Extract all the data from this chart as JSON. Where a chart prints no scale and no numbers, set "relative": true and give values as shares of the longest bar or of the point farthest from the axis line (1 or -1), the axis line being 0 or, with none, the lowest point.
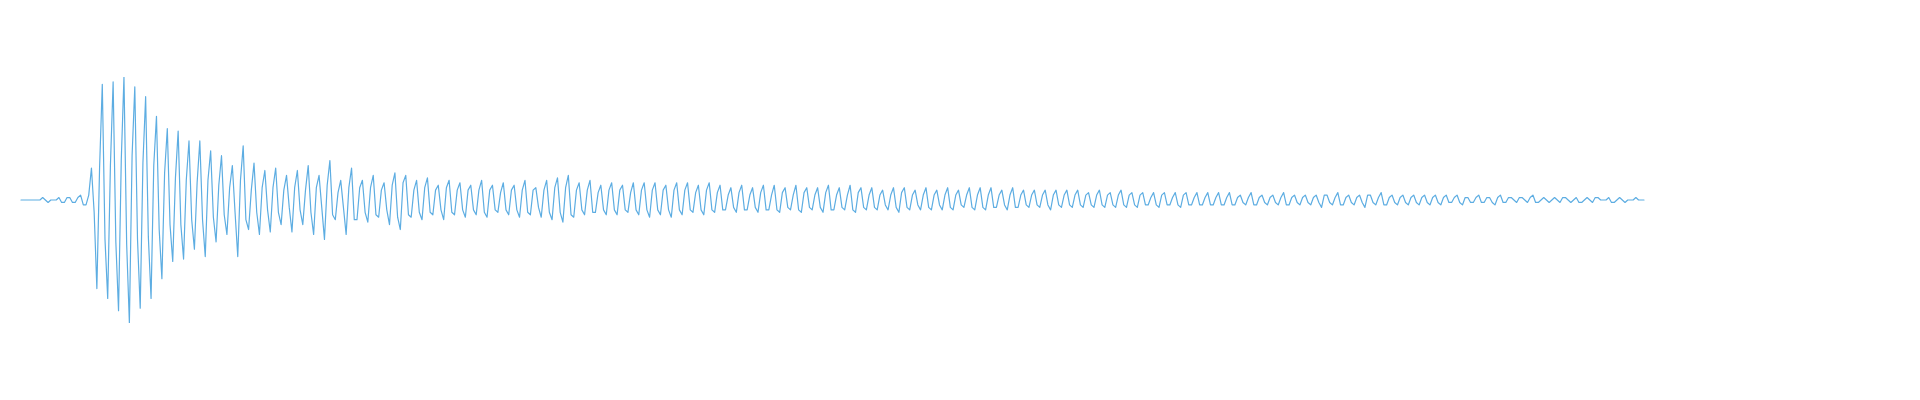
{
  "chart_data": {
    "type": "line",
    "relative": true,
    "color": "#5dade2",
    "categories": [
      null,
      null,
      null,
      null,
      null,
      null,
      null,
      null,
      null,
      null,
      null,
      null,
      null,
      null,
      null,
      null,
      null,
      null,
      null,
      null,
      null,
      null,
      null,
      null,
      null,
      null,
      null,
      null,
      null,
      null,
      null,
      null,
      null,
      null,
      null,
      null,
      null,
      null,
      null,
      null,
      null,
      null,
      null,
      null,
      null,
      null,
      null,
      null,
      null,
      null,
      null,
      null,
      null,
      null,
      null,
      null,
      null,
      null,
      null,
      null,
      null,
      null,
      null,
      null,
      null,
      null,
      null,
      null,
      null,
      null,
      null,
      null,
      null,
      null,
      null,
      null,
      null,
      null,
      null,
      null,
      null,
      null,
      null,
      null,
      null,
      null,
      null,
      null,
      null,
      null,
      null,
      null,
      null,
      null,
      null,
      null,
      null,
      null,
      null,
      null,
      null,
      null,
      null,
      null,
      null,
      null,
      null,
      null,
      null,
      null,
      null,
      null,
      null,
      null,
      null,
      null,
      null,
      null,
      null,
      null,
      null,
      null,
      null,
      null,
      null,
      null,
      null,
      null,
      null,
      null,
      null,
      null,
      null,
      null,
      null,
      null,
      null,
      null,
      null,
      null,
      null,
      null,
      null,
      null,
      null,
      null,
      null,
      null,
      null,
      null,
      null,
      null,
      null,
      null,
      null,
      null,
      null,
      null,
      null,
      null,
      null,
      null,
      null,
      null,
      null,
      null,
      null,
      null,
      null,
      null,
      null,
      null,
      null,
      null,
      null,
      null,
      null,
      null,
      null,
      null,
      null,
      null,
      null,
      null,
      null,
      null,
      null,
      null,
      null,
      null,
      null,
      null,
      null,
      null,
      null,
      null,
      null,
      null,
      null,
      null,
      null,
      null,
      null,
      null,
      null,
      null,
      null,
      null,
      null,
      null,
      null,
      null,
      null,
      null,
      null,
      null,
      null,
      null,
      null,
      null,
      null,
      null,
      null,
      null,
      null,
      null,
      null,
      null,
      null,
      null,
      null,
      null,
      null,
      null,
      null,
      null,
      null,
      null,
      null,
      null,
      null,
      null,
      null,
      null,
      null,
      null,
      null,
      null,
      null,
      null,
      null,
      null,
      null,
      null,
      null,
      null,
      null,
      null,
      null,
      null,
      null,
      null,
      null,
      null,
      null,
      null,
      null,
      null,
      null,
      null,
      null,
      null,
      null,
      null,
      null,
      null,
      null,
      null,
      null,
      null,
      null,
      null,
      null,
      null,
      null,
      null,
      null,
      null,
      null,
      null,
      null,
      null,
      null,
      null,
      null,
      null,
      null,
      null,
      null,
      null,
      null,
      null,
      null,
      null,
      null,
      null,
      null,
      null,
      null,
      null,
      null,
      null,
      null,
      null,
      null,
      null,
      null,
      null,
      null,
      null,
      null,
      null,
      null,
      null,
      null,
      null,
      null,
      null,
      null,
      null,
      null,
      null,
      null,
      null,
      null,
      null,
      null,
      null,
      null,
      null,
      null,
      null,
      null,
      null,
      null,
      null,
      null,
      null,
      null,
      null,
      null,
      null,
      null,
      null,
      null,
      null,
      null,
      null,
      null,
      null,
      null,
      null,
      null,
      null,
      null,
      null,
      null,
      null,
      null,
      null,
      null,
      null,
      null,
      null,
      null,
      null,
      null,
      null,
      null,
      null,
      null,
      null,
      null,
      null,
      null,
      null,
      null,
      null,
      null,
      null,
      null,
      null,
      null,
      null,
      null,
      null,
      null,
      null,
      null,
      null,
      null,
      null,
      null,
      null,
      null,
      null,
      null,
      null,
      null,
      null,
      null,
      null,
      null,
      null,
      null,
      null,
      null,
      null,
      null,
      null,
      null,
      null,
      null,
      null,
      null,
      null,
      null,
      null,
      null,
      null,
      null,
      null,
      null,
      null,
      null,
      null,
      null,
      null,
      null,
      null,
      null,
      null,
      null,
      null,
      null,
      null,
      null,
      null,
      null,
      null,
      null,
      null,
      null,
      null,
      null,
      null,
      null,
      null,
      null,
      null,
      null,
      null,
      null,
      null,
      null,
      null,
      null,
      null,
      null,
      null,
      null,
      null,
      null,
      null,
      null,
      null,
      null,
      null,
      null,
      null,
      null,
      null,
      null,
      null,
      null,
      null,
      null,
      null,
      null,
      null,
      null,
      null,
      null,
      null,
      null,
      null,
      null,
      null,
      null,
      null,
      null,
      null,
      null,
      null,
      null,
      null,
      null,
      null,
      null,
      null,
      null,
      null,
      null,
      null,
      null,
      null,
      null,
      null,
      null,
      null,
      null,
      null,
      null,
      null,
      null,
      null,
      null,
      null,
      null,
      null,
      null,
      null,
      null,
      null,
      null,
      null,
      null,
      null,
      null,
      null,
      null,
      null,
      null,
      null,
      null,
      null,
      null,
      null,
      null,
      null,
      null,
      null,
      null,
      null,
      null,
      null,
      null,
      null,
      null,
      null,
      null,
      null,
      null,
      null,
      null,
      null,
      null,
      null,
      null,
      null,
      null,
      null,
      null,
      null,
      null,
      null,
      null,
      null,
      null,
      null,
      null,
      null,
      null,
      null,
      null,
      null,
      null,
      null,
      null,
      null,
      null,
      null,
      null,
      null,
      null,
      null,
      null,
      null,
      null,
      null
    ],
    "values": [
      0.5,
      0.5,
      0.5,
      0.5,
      0.5,
      0.5,
      0.5,
      0.5,
      0.51,
      0.5,
      0.49,
      0.5,
      0.5,
      0.5,
      0.51,
      0.49,
      0.49,
      0.51,
      0.51,
      0.49,
      0.49,
      0.51,
      0.52,
      0.48,
      0.48,
      0.52,
      0.63,
      0.45,
      0.14,
      0.63,
      0.97,
      0.34,
      0.1,
      0.64,
      0.98,
      0.33,
      0.05,
      0.66,
      1,
      0.32,
      0,
      0.68,
      0.96,
      0.34,
      0.06,
      0.65,
      0.92,
      0.35,
      0.1,
      0.64,
      0.84,
      0.38,
      0.18,
      0.61,
      0.79,
      0.4,
      0.25,
      0.59,
      0.78,
      0.4,
      0.26,
      0.58,
      0.74,
      0.42,
      0.3,
      0.57,
      0.74,
      0.42,
      0.27,
      0.58,
      0.7,
      0.43,
      0.33,
      0.56,
      0.68,
      0.44,
      0.36,
      0.55,
      0.64,
      0.45,
      0.27,
      0.58,
      0.72,
      0.42,
      0.38,
      0.54,
      0.65,
      0.45,
      0.36,
      0.55,
      0.62,
      0.46,
      0.37,
      0.55,
      0.63,
      0.45,
      0.4,
      0.54,
      0.6,
      0.47,
      0.37,
      0.55,
      0.62,
      0.46,
      0.4,
      0.54,
      0.64,
      0.45,
      0.36,
      0.55,
      0.6,
      0.47,
      0.34,
      0.56,
      0.66,
      0.44,
      0.42,
      0.53,
      0.58,
      0.47,
      0.36,
      0.55,
      0.63,
      0.42,
      0.42,
      0.55,
      0.58,
      0.45,
      0.41,
      0.55,
      0.6,
      0.44,
      0.43,
      0.54,
      0.57,
      0.46,
      0.4,
      0.56,
      0.61,
      0.43,
      0.38,
      0.57,
      0.6,
      0.44,
      0.43,
      0.54,
      0.58,
      0.45,
      0.42,
      0.55,
      0.59,
      0.45,
      0.44,
      0.54,
      0.56,
      0.46,
      0.42,
      0.55,
      0.58,
      0.45,
      0.44,
      0.54,
      0.57,
      0.46,
      0.43,
      0.54,
      0.56,
      0.46,
      0.44,
      0.54,
      0.58,
      0.45,
      0.43,
      0.54,
      0.56,
      0.46,
      0.45,
      0.53,
      0.57,
      0.46,
      0.44,
      0.54,
      0.56,
      0.46,
      0.43,
      0.54,
      0.58,
      0.45,
      0.44,
      0.54,
      0.55,
      0.47,
      0.43,
      0.54,
      0.58,
      0.45,
      0.42,
      0.55,
      0.59,
      0.45,
      0.41,
      0.55,
      0.6,
      0.44,
      0.43,
      0.54,
      0.57,
      0.46,
      0.44,
      0.54,
      0.58,
      0.45,
      0.45,
      0.53,
      0.56,
      0.46,
      0.44,
      0.54,
      0.57,
      0.46,
      0.44,
      0.54,
      0.56,
      0.46,
      0.45,
      0.53,
      0.57,
      0.46,
      0.44,
      0.54,
      0.57,
      0.46,
      0.43,
      0.54,
      0.57,
      0.46,
      0.44,
      0.54,
      0.56,
      0.46,
      0.43,
      0.54,
      0.57,
      0.46,
      0.44,
      0.54,
      0.57,
      0.46,
      0.45,
      0.53,
      0.56,
      0.46,
      0.44,
      0.54,
      0.57,
      0.46,
      0.45,
      0.53,
      0.56,
      0.46,
      0.46,
      0.52,
      0.55,
      0.47,
      0.45,
      0.53,
      0.56,
      0.46,
      0.46,
      0.52,
      0.55,
      0.47,
      0.45,
      0.53,
      0.56,
      0.46,
      0.46,
      0.52,
      0.56,
      0.46,
      0.45,
      0.53,
      0.55,
      0.47,
      0.46,
      0.52,
      0.56,
      0.46,
      0.45,
      0.53,
      0.55,
      0.47,
      0.46,
      0.52,
      0.55,
      0.47,
      0.45,
      0.53,
      0.56,
      0.46,
      0.46,
      0.52,
      0.55,
      0.47,
      0.46,
      0.52,
      0.56,
      0.46,
      0.45,
      0.53,
      0.55,
      0.47,
      0.46,
      0.52,
      0.55,
      0.47,
      0.46,
      0.52,
      0.54,
      0.48,
      0.46,
      0.52,
      0.55,
      0.47,
      0.45,
      0.53,
      0.55,
      0.47,
      0.46,
      0.52,
      0.54,
      0.48,
      0.46,
      0.52,
      0.55,
      0.47,
      0.46,
      0.52,
      0.54,
      0.48,
      0.46,
      0.52,
      0.55,
      0.47,
      0.46,
      0.52,
      0.54,
      0.48,
      0.47,
      0.52,
      0.55,
      0.47,
      0.46,
      0.52,
      0.55,
      0.47,
      0.46,
      0.52,
      0.55,
      0.47,
      0.47,
      0.52,
      0.54,
      0.48,
      0.46,
      0.52,
      0.55,
      0.47,
      0.47,
      0.52,
      0.54,
      0.48,
      0.47,
      0.52,
      0.54,
      0.48,
      0.47,
      0.52,
      0.54,
      0.48,
      0.46,
      0.52,
      0.54,
      0.48,
      0.47,
      0.52,
      0.54,
      0.48,
      0.47,
      0.52,
      0.54,
      0.48,
      0.47,
      0.52,
      0.53,
      0.48,
      0.47,
      0.52,
      0.54,
      0.48,
      0.47,
      0.52,
      0.53,
      0.48,
      0.47,
      0.52,
      0.54,
      0.48,
      0.47,
      0.52,
      0.53,
      0.48,
      0.47,
      0.52,
      0.53,
      0.48,
      0.48,
      0.51,
      0.53,
      0.48,
      0.47,
      0.52,
      0.53,
      0.48,
      0.48,
      0.51,
      0.53,
      0.48,
      0.47,
      0.52,
      0.53,
      0.48,
      0.48,
      0.51,
      0.53,
      0.48,
      0.48,
      0.51,
      0.53,
      0.48,
      0.48,
      0.51,
      0.53,
      0.48,
      0.48,
      0.51,
      0.53,
      0.48,
      0.48,
      0.51,
      0.52,
      0.49,
      0.48,
      0.51,
      0.53,
      0.48,
      0.48,
      0.51,
      0.52,
      0.49,
      0.48,
      0.51,
      0.52,
      0.49,
      0.48,
      0.51,
      0.53,
      0.48,
      0.48,
      0.51,
      0.52,
      0.49,
      0.48,
      0.51,
      0.52,
      0.49,
      0.48,
      0.51,
      0.52,
      0.49,
      0.47,
      0.52,
      0.52,
      0.49,
      0.48,
      0.51,
      0.53,
      0.48,
      0.48,
      0.51,
      0.52,
      0.49,
      0.48,
      0.51,
      0.52,
      0.49,
      0.47,
      0.52,
      0.52,
      0.49,
      0.48,
      0.51,
      0.53,
      0.48,
      0.48,
      0.51,
      0.52,
      0.49,
      0.48,
      0.51,
      0.52,
      0.49,
      0.48,
      0.51,
      0.52,
      0.49,
      0.48,
      0.51,
      0.52,
      0.49,
      0.48,
      0.51,
      0.52,
      0.49,
      0.48,
      0.51,
      0.52,
      0.49,
      0.49,
      0.51,
      0.52,
      0.49,
      0.48,
      0.51,
      0.51,
      0.49,
      0.49,
      0.51,
      0.52,
      0.49,
      0.49,
      0.51,
      0.51,
      0.49,
      0.48,
      0.51,
      0.52,
      0.49,
      0.49,
      0.51,
      0.51,
      0.5,
      0.49,
      0.51,
      0.51,
      0.5,
      0.49,
      0.51,
      0.52,
      0.49,
      0.49,
      0.5,
      0.51,
      0.5,
      0.49,
      0.5,
      0.51,
      0.5,
      0.49,
      0.51,
      0.51,
      0.5,
      0.49,
      0.5,
      0.51,
      0.49,
      0.49,
      0.5,
      0.51,
      0.5,
      0.49,
      0.51,
      0.51,
      0.5,
      0.5,
      0.5,
      0.51,
      0.49,
      0.49,
      0.5,
      0.51,
      0.5,
      0.49,
      0.5,
      0.5,
      0.5,
      0.51,
      0.5,
      0.5,
      0.5
    ]
  }
}
